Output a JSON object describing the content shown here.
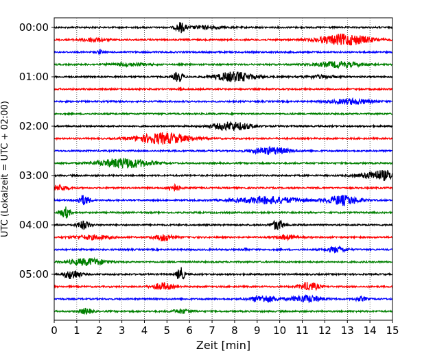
{
  "chart_data": {
    "type": "line",
    "title": "",
    "xlabel": "Zeit  [min]",
    "ylabel": "UTC (Lokalzeit = UTC + 02:00)",
    "xlim": [
      0,
      15
    ],
    "x_ticks": [
      0,
      1,
      2,
      3,
      4,
      5,
      6,
      7,
      8,
      9,
      10,
      11,
      12,
      13,
      14,
      15
    ],
    "x_tick_labels": [
      "0",
      "1",
      "2",
      "3",
      "4",
      "5",
      "6",
      "7",
      "8",
      "9",
      "10",
      "11",
      "12",
      "13",
      "14",
      "15"
    ],
    "y_tick_labels": [
      "00:00",
      "01:00",
      "02:00",
      "03:00",
      "04:00",
      "05:00"
    ],
    "grid": "vertical-dotted",
    "row_interval_min": 15,
    "color_cycle": [
      "#000000",
      "#ff0000",
      "#0000ff",
      "#008000"
    ],
    "traces": [
      {
        "start": "00:00",
        "bursts": [
          [
            5.6,
            0.15,
            7
          ],
          [
            6.7,
            0.6,
            2
          ]
        ]
      },
      {
        "start": "00:15",
        "bursts": [
          [
            1.7,
            0.4,
            2.5
          ],
          [
            12.9,
            0.8,
            8
          ]
        ]
      },
      {
        "start": "00:30",
        "bursts": [
          [
            2.0,
            0.08,
            3
          ]
        ]
      },
      {
        "start": "00:45",
        "bursts": [
          [
            3.3,
            0.6,
            2
          ],
          [
            12.6,
            0.7,
            4
          ]
        ]
      },
      {
        "start": "01:00",
        "bursts": [
          [
            5.5,
            0.15,
            7
          ],
          [
            8.0,
            0.6,
            7
          ],
          [
            11.8,
            0.5,
            2
          ]
        ]
      },
      {
        "start": "01:15",
        "bursts": [
          [
            5.6,
            0.05,
            3
          ]
        ]
      },
      {
        "start": "01:30",
        "bursts": [
          [
            13.2,
            0.6,
            4
          ]
        ]
      },
      {
        "start": "01:45",
        "bursts": []
      },
      {
        "start": "02:00",
        "bursts": [
          [
            7.9,
            0.6,
            6
          ]
        ]
      },
      {
        "start": "02:15",
        "bursts": [
          [
            4.8,
            0.8,
            8
          ]
        ]
      },
      {
        "start": "02:30",
        "bursts": [
          [
            9.6,
            0.6,
            5
          ]
        ]
      },
      {
        "start": "02:45",
        "bursts": [
          [
            3.1,
            0.8,
            7
          ]
        ]
      },
      {
        "start": "03:00",
        "bursts": [
          [
            14.5,
            0.6,
            7
          ]
        ]
      },
      {
        "start": "03:15",
        "bursts": [
          [
            0.2,
            0.3,
            4
          ],
          [
            5.3,
            0.2,
            5
          ]
        ]
      },
      {
        "start": "03:30",
        "bursts": [
          [
            1.3,
            0.2,
            7
          ],
          [
            9.5,
            1.0,
            5
          ],
          [
            12.8,
            0.5,
            7
          ]
        ]
      },
      {
        "start": "03:45",
        "bursts": [
          [
            0.5,
            0.15,
            8
          ]
        ]
      },
      {
        "start": "04:00",
        "bursts": [
          [
            1.3,
            0.2,
            6
          ],
          [
            9.9,
            0.2,
            7
          ]
        ]
      },
      {
        "start": "04:15",
        "bursts": [
          [
            1.7,
            0.6,
            3
          ],
          [
            4.9,
            0.3,
            5
          ],
          [
            10.3,
            0.3,
            3
          ]
        ]
      },
      {
        "start": "04:30",
        "bursts": [
          [
            8.5,
            0.05,
            3
          ],
          [
            12.5,
            0.3,
            4
          ]
        ]
      },
      {
        "start": "04:45",
        "bursts": [
          [
            1.5,
            0.6,
            5
          ]
        ]
      },
      {
        "start": "05:00",
        "bursts": [
          [
            0.8,
            0.25,
            7
          ],
          [
            5.6,
            0.12,
            10
          ]
        ]
      },
      {
        "start": "05:15",
        "bursts": [
          [
            4.8,
            0.3,
            5
          ],
          [
            11.3,
            0.3,
            6
          ]
        ]
      },
      {
        "start": "05:30",
        "bursts": [
          [
            9.3,
            0.4,
            5
          ],
          [
            11.2,
            0.5,
            5
          ],
          [
            13.6,
            0.2,
            3
          ]
        ]
      },
      {
        "start": "05:45",
        "bursts": [
          [
            1.4,
            0.2,
            4
          ],
          [
            5.7,
            0.3,
            3
          ]
        ]
      }
    ]
  }
}
